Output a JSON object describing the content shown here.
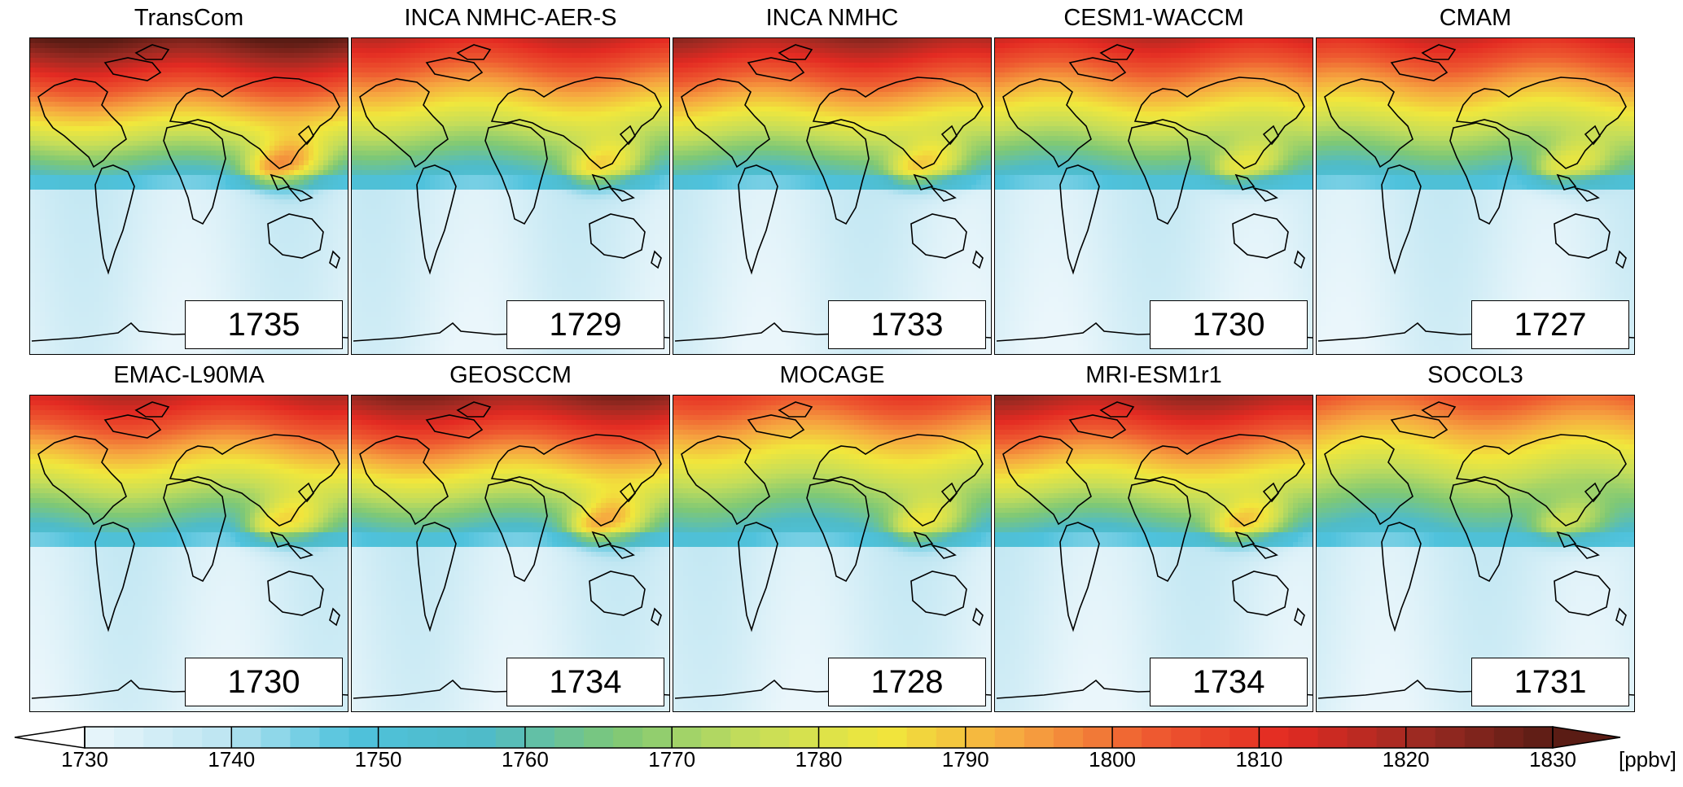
{
  "panels": [
    {
      "name": "TransCom",
      "value": "1735",
      "intensity": 1.0
    },
    {
      "name": "INCA NMHC-AER-S",
      "value": "1729",
      "intensity": 0.82
    },
    {
      "name": "INCA NMHC",
      "value": "1733",
      "intensity": 0.9
    },
    {
      "name": "CESM1-WACCM",
      "value": "1730",
      "intensity": 0.82
    },
    {
      "name": "CMAM",
      "value": "1727",
      "intensity": 0.8
    },
    {
      "name": "EMAC-L90MA",
      "value": "1730",
      "intensity": 0.84
    },
    {
      "name": "GEOSCCM",
      "value": "1734",
      "intensity": 0.93
    },
    {
      "name": "MOCAGE",
      "value": "1728",
      "intensity": 0.72
    },
    {
      "name": "MRI-ESM1r1",
      "value": "1734",
      "intensity": 0.9
    },
    {
      "name": "SOCOL3",
      "value": "1731",
      "intensity": 0.68
    }
  ],
  "colorbar": {
    "min": 1730,
    "max": 1830,
    "ticks": [
      "1730",
      "1740",
      "1750",
      "1760",
      "1770",
      "1780",
      "1790",
      "1800",
      "1810",
      "1820",
      "1830"
    ],
    "unit": "[ppbv]",
    "stops": [
      "#eaf6fb",
      "#bfe6f2",
      "#4fc2dc",
      "#4fbbc8",
      "#7ec876",
      "#c4dd5a",
      "#f1e73c",
      "#f6a640",
      "#ee5a30",
      "#e32a22",
      "#9e2a22",
      "#5a1c14"
    ]
  },
  "map": {
    "land_outline": "#000000",
    "ocean_background": "#e6f4fa"
  }
}
